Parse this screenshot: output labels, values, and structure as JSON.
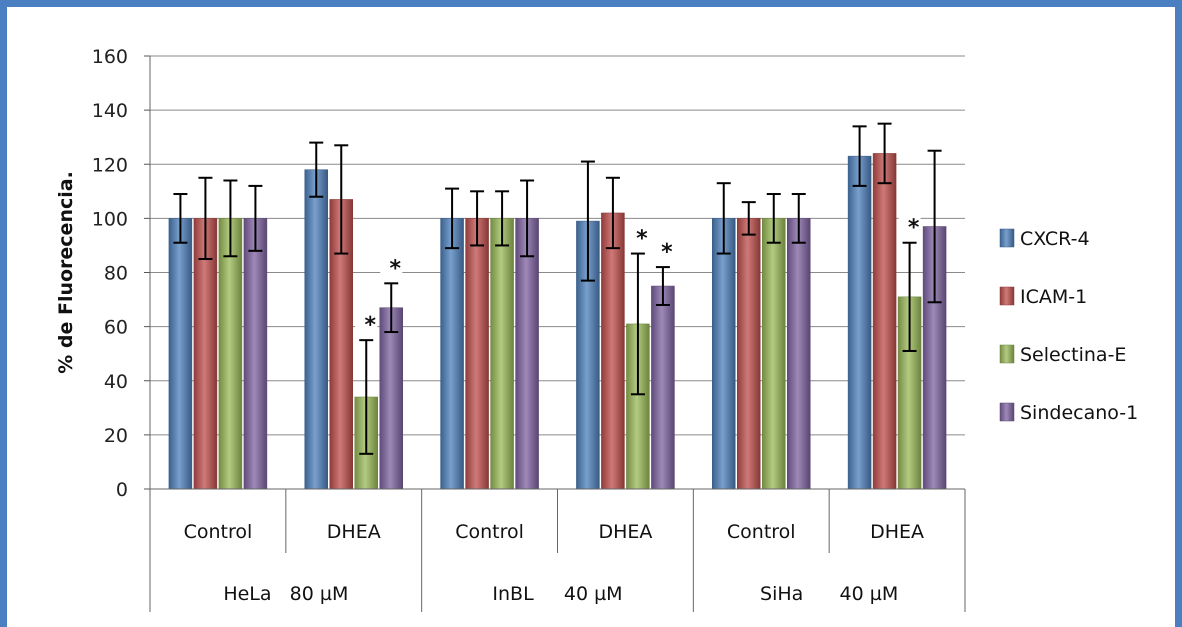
{
  "chart_data": {
    "type": "bar",
    "title": "",
    "ylabel": "% de Fluorecencia.",
    "ylim": [
      0,
      160
    ],
    "yticks": [
      0,
      20,
      40,
      60,
      80,
      100,
      120,
      140,
      160
    ],
    "grid": true,
    "legend_position": "right",
    "categories": [
      "Control",
      "DHEA",
      "Control",
      "DHEA",
      "Control",
      "DHEA"
    ],
    "groups": [
      "HeLa   80 µM",
      "InBL     40 µM",
      "SiHa      40 µM"
    ],
    "series": [
      {
        "name": "CXCR-4",
        "color": "#4f81bd",
        "values": [
          100,
          118,
          100,
          99,
          100,
          123
        ],
        "errors": [
          9,
          10,
          11,
          22,
          13,
          11
        ]
      },
      {
        "name": "ICAM-1",
        "color": "#c0504d",
        "values": [
          100,
          107,
          100,
          102,
          100,
          124
        ],
        "errors": [
          15,
          20,
          10,
          13,
          6,
          11
        ]
      },
      {
        "name": "Selectina-E",
        "color": "#9bbb59",
        "values": [
          100,
          34,
          100,
          61,
          100,
          71
        ],
        "errors": [
          14,
          21,
          10,
          26,
          9,
          20
        ]
      },
      {
        "name": "Sindecano-1",
        "color": "#8064a2",
        "values": [
          100,
          67,
          100,
          75,
          100,
          97
        ],
        "errors": [
          12,
          9,
          14,
          7,
          9,
          28
        ]
      }
    ],
    "annotations": [
      {
        "text": "*",
        "series": 2,
        "category": 1
      },
      {
        "text": "*",
        "series": 3,
        "category": 1
      },
      {
        "text": "*",
        "series": 2,
        "category": 3
      },
      {
        "text": "*",
        "series": 3,
        "category": 3
      },
      {
        "text": "*",
        "series": 2,
        "category": 5
      }
    ]
  }
}
